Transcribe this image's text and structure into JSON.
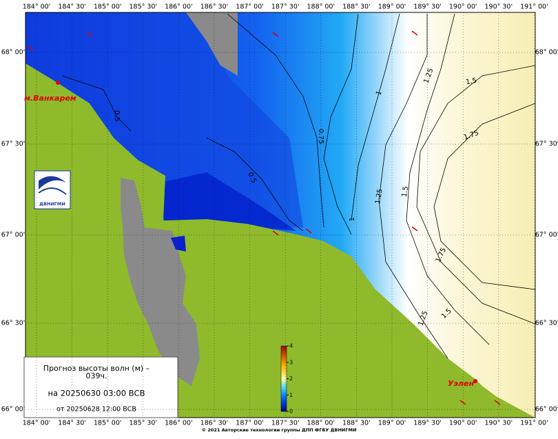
{
  "map": {
    "lon_labels": [
      "184° 00'",
      "184° 30'",
      "185° 00'",
      "185° 30'",
      "186° 00'",
      "186° 30'",
      "187° 00'",
      "187° 30'",
      "188° 00'",
      "188° 30'",
      "189° 00'",
      "189° 30'",
      "190° 00'",
      "190° 30'",
      "191° 00'"
    ],
    "lat_labels": [
      "68° 00'",
      "67° 30'",
      "67° 00'",
      "66° 30'",
      "66° 00'"
    ],
    "contour_labels": [
      "0.5",
      "0.5",
      "0.75",
      "1",
      "1",
      "1.25",
      "1.25",
      "1.25",
      "1.5",
      "1.5",
      "1.5",
      "1.75",
      "1.75"
    ],
    "places": [
      "м.Ванкарем",
      "Уэлен"
    ],
    "logo_text": "ДВНИГМИ",
    "legend": {
      "title_lines": [
        "Прогноз высоты волн (м) –",
        "039ч."
      ],
      "valid": "на 20250630 03:00 ВСВ",
      "issued": "от 20250628 12:00 ВСВ"
    },
    "colorbar": {
      "ticks": [
        0,
        1,
        2,
        3,
        4
      ],
      "range": [
        0,
        4
      ]
    },
    "footer": "© 2021 Авторские технологии группы ДПП ФГБУ ДВНИГМИ"
  }
}
